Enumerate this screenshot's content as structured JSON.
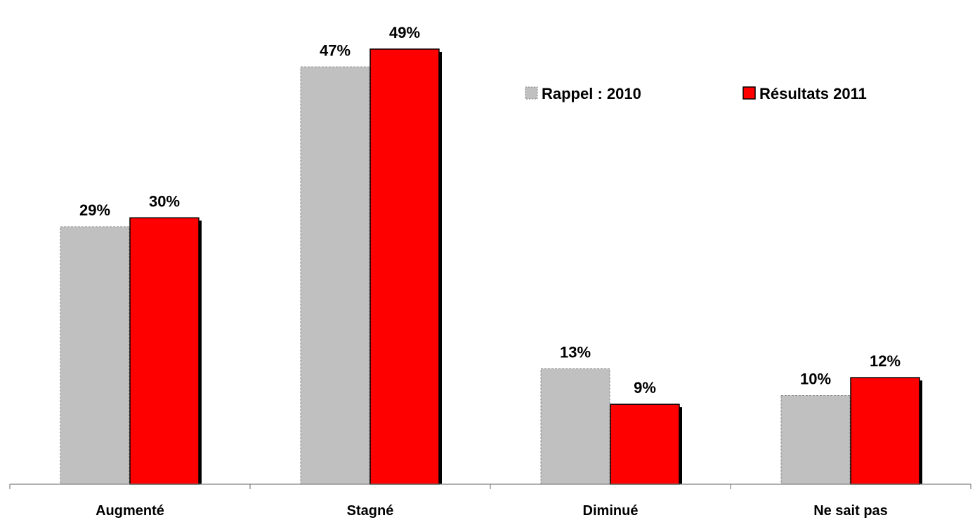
{
  "chart_data": {
    "type": "bar",
    "categories": [
      "Augmenté",
      "Stagné",
      "Diminué",
      "Ne sait pas"
    ],
    "series": [
      {
        "name": "Rappel : 2010",
        "values": [
          29,
          47,
          13,
          10
        ],
        "labels": [
          "29%",
          "47%",
          "13%",
          "10%"
        ],
        "color": "#c0c0c0"
      },
      {
        "name": "Résultats 2011",
        "values": [
          30,
          49,
          9,
          12
        ],
        "labels": [
          "30%",
          "49%",
          "9%",
          "12%"
        ],
        "color": "#ff0000"
      }
    ],
    "ylim": [
      0,
      52
    ],
    "grid": false,
    "legend": "top-right",
    "colors": {
      "shadow": "#000000",
      "axis": "#808080"
    }
  }
}
